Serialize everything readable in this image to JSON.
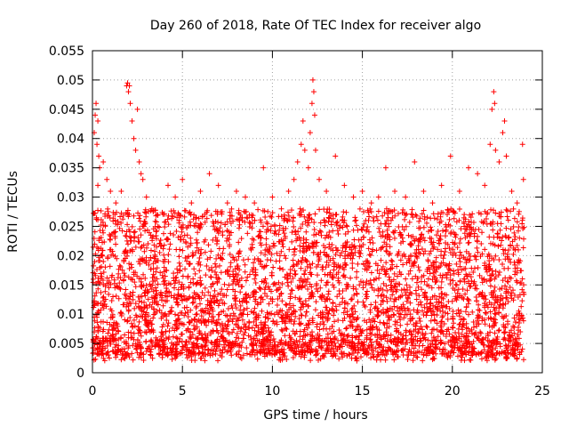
{
  "chart_data": {
    "type": "scatter",
    "title": "Day 260 of 2018, Rate Of TEC Index for receiver algo",
    "xlabel": "GPS time / hours",
    "ylabel": "ROTI / TECUs",
    "xlim": [
      0,
      25
    ],
    "ylim": [
      0,
      0.055
    ],
    "xticks": [
      0,
      5,
      10,
      15,
      20,
      25
    ],
    "xtick_labels": [
      "0",
      "5",
      "10",
      "15",
      "20",
      "25"
    ],
    "yticks": [
      0,
      0.005,
      0.01,
      0.015,
      0.02,
      0.025,
      0.03,
      0.035,
      0.04,
      0.045,
      0.05,
      0.055
    ],
    "ytick_labels": [
      "0",
      "0.005",
      "0.01",
      "0.015",
      "0.02",
      "0.025",
      "0.03",
      "0.035",
      "0.04",
      "0.045",
      "0.05",
      "0.055"
    ],
    "grid": true,
    "marker": "+",
    "color": "#ff0000",
    "series": [
      {
        "name": "ROTI",
        "points": [
          [
            0.1,
            0.041
          ],
          [
            0.15,
            0.044
          ],
          [
            0.2,
            0.046
          ],
          [
            0.25,
            0.039
          ],
          [
            0.3,
            0.043
          ],
          [
            0.35,
            0.037
          ],
          [
            0.4,
            0.035
          ],
          [
            0.3,
            0.032
          ],
          [
            0.6,
            0.036
          ],
          [
            0.8,
            0.033
          ],
          [
            1.0,
            0.031
          ],
          [
            1.3,
            0.029
          ],
          [
            1.6,
            0.031
          ],
          [
            1.9,
            0.049
          ],
          [
            1.95,
            0.0495
          ],
          [
            2.0,
            0.048
          ],
          [
            2.05,
            0.049
          ],
          [
            2.1,
            0.046
          ],
          [
            2.2,
            0.043
          ],
          [
            2.3,
            0.04
          ],
          [
            2.4,
            0.038
          ],
          [
            2.5,
            0.045
          ],
          [
            2.6,
            0.036
          ],
          [
            2.7,
            0.034
          ],
          [
            2.8,
            0.033
          ],
          [
            3.0,
            0.03
          ],
          [
            3.3,
            0.028
          ],
          [
            3.6,
            0.027
          ],
          [
            4.2,
            0.032
          ],
          [
            4.6,
            0.03
          ],
          [
            5.0,
            0.033
          ],
          [
            5.5,
            0.029
          ],
          [
            6.0,
            0.031
          ],
          [
            6.5,
            0.034
          ],
          [
            7.0,
            0.032
          ],
          [
            7.5,
            0.029
          ],
          [
            8.0,
            0.031
          ],
          [
            8.5,
            0.03
          ],
          [
            9.0,
            0.029
          ],
          [
            9.5,
            0.035
          ],
          [
            10.0,
            0.03
          ],
          [
            10.5,
            0.028
          ],
          [
            10.9,
            0.031
          ],
          [
            11.2,
            0.033
          ],
          [
            11.4,
            0.036
          ],
          [
            11.6,
            0.039
          ],
          [
            11.7,
            0.043
          ],
          [
            11.8,
            0.038
          ],
          [
            12.0,
            0.035
          ],
          [
            12.1,
            0.041
          ],
          [
            12.2,
            0.046
          ],
          [
            12.25,
            0.05
          ],
          [
            12.3,
            0.048
          ],
          [
            12.35,
            0.044
          ],
          [
            12.4,
            0.038
          ],
          [
            12.6,
            0.033
          ],
          [
            13.0,
            0.031
          ],
          [
            13.5,
            0.037
          ],
          [
            14.0,
            0.032
          ],
          [
            14.5,
            0.03
          ],
          [
            15.0,
            0.031
          ],
          [
            15.5,
            0.029
          ],
          [
            15.9,
            0.03
          ],
          [
            16.3,
            0.035
          ],
          [
            16.8,
            0.031
          ],
          [
            17.4,
            0.03
          ],
          [
            17.9,
            0.036
          ],
          [
            18.4,
            0.031
          ],
          [
            18.9,
            0.029
          ],
          [
            19.4,
            0.032
          ],
          [
            19.9,
            0.037
          ],
          [
            20.4,
            0.031
          ],
          [
            20.9,
            0.035
          ],
          [
            21.4,
            0.034
          ],
          [
            21.8,
            0.032
          ],
          [
            22.1,
            0.039
          ],
          [
            22.2,
            0.045
          ],
          [
            22.3,
            0.048
          ],
          [
            22.35,
            0.046
          ],
          [
            22.4,
            0.038
          ],
          [
            22.6,
            0.036
          ],
          [
            22.8,
            0.041
          ],
          [
            22.9,
            0.043
          ],
          [
            23.0,
            0.037
          ],
          [
            23.3,
            0.031
          ],
          [
            23.6,
            0.029
          ],
          [
            23.9,
            0.039
          ],
          [
            23.95,
            0.033
          ]
        ]
      }
    ]
  }
}
